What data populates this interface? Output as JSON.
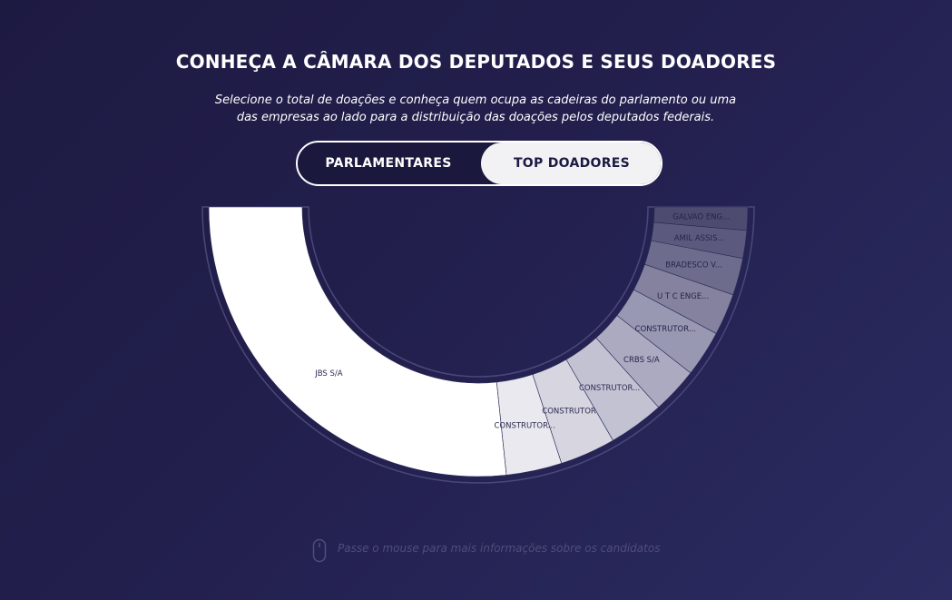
{
  "header": {
    "title": "CONHEÇA A CÂMARA DOS DEPUTADOS E SEUS DOADORES",
    "subtitle_line1": "Selecione o total de doações e conheça quem ocupa as cadeiras do parlamento ou uma",
    "subtitle_line2": "das empresas ao lado para a distribuição das doações pelos deputados federais."
  },
  "toggle": {
    "left_label": "PARLAMENTARES",
    "right_label": "TOP DOADORES",
    "selected": "TOP DOADORES"
  },
  "donut": {
    "segments": [
      {
        "label": "JBS S/A",
        "sweep_deg": 96,
        "color": "#ffffff"
      },
      {
        "label": "CONSTRUTOR...",
        "sweep_deg": 12,
        "color": "#e9e9ef"
      },
      {
        "label": "CONSTRUTOR",
        "sweep_deg": 12,
        "color": "#d6d5e0"
      },
      {
        "label": "CONSTRUTOR...",
        "sweep_deg": 12,
        "color": "#c3c2d3"
      },
      {
        "label": "CRBS S/A",
        "sweep_deg": 10,
        "color": "#abaac1"
      },
      {
        "label": "CONSTRUTOR...",
        "sweep_deg": 10,
        "color": "#9998b3"
      },
      {
        "label": "U T C ENGE...",
        "sweep_deg": 9,
        "color": "#84829f"
      },
      {
        "label": "BRADESCO V...",
        "sweep_deg": 8,
        "color": "#6e6c8d"
      },
      {
        "label": "AMIL ASSIS...",
        "sweep_deg": 6,
        "color": "#5b5a7e"
      },
      {
        "label": "GALVAO ENG...",
        "sweep_deg": 5,
        "color": "#4d4b70"
      }
    ]
  },
  "hint": {
    "text": "Passe o mouse para mais informações sobre os candidatos",
    "icon": "mouse-icon"
  }
}
